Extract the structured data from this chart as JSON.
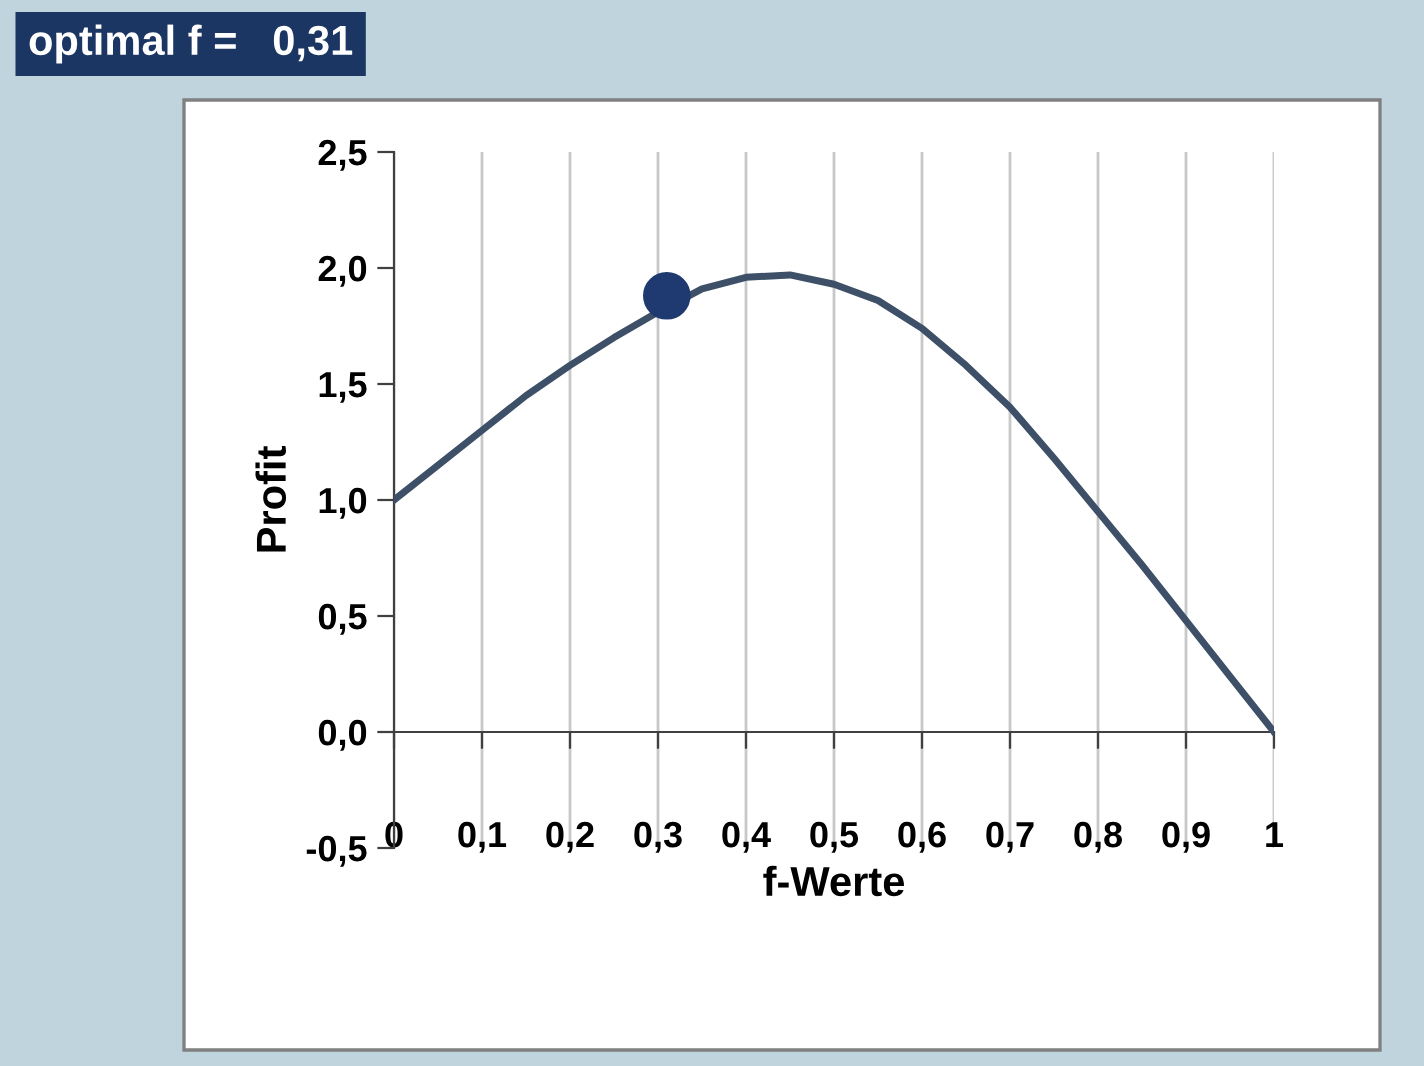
{
  "chart_data": {
    "type": "line",
    "title": "optimal f =   0,31",
    "xlabel": "f-Werte",
    "ylabel": "Profit",
    "series": [
      {
        "color": "#3d5068",
        "marker": "none",
        "x": [
          0,
          0.05,
          0.1,
          0.15,
          0.2,
          0.25,
          0.3,
          0.35,
          0.4,
          0.45,
          0.5,
          0.55,
          0.6,
          0.65,
          0.7,
          0.75,
          0.8,
          0.85,
          0.9,
          0.95,
          1.0
        ],
        "values": [
          1.0,
          1.15,
          1.3,
          1.45,
          1.58,
          1.7,
          1.81,
          1.91,
          1.96,
          1.97,
          1.93,
          1.86,
          1.74,
          1.58,
          1.4,
          1.18,
          0.95,
          0.72,
          0.48,
          0.24,
          0.0
        ]
      },
      {
        "type": "scatter",
        "color": "#1f3a70",
        "marker": "circle",
        "x": [
          0.31
        ],
        "values": [
          1.88
        ]
      }
    ],
    "xlim": [
      0,
      1
    ],
    "ylim": [
      -0.5,
      2.5
    ],
    "xticks": [
      0,
      {
        "value": 0.1,
        "label": "0,1"
      },
      {
        "value": 0.2,
        "label": "0,2"
      },
      {
        "value": 0.3,
        "label": "0,3"
      },
      {
        "value": 0.4,
        "label": "0,4"
      },
      {
        "value": 0.5,
        "label": "0,5"
      },
      {
        "value": 0.6,
        "label": "0,6"
      },
      {
        "value": 0.7,
        "label": "0,7"
      },
      {
        "value": 0.8,
        "label": "0,8"
      },
      {
        "value": 0.9,
        "label": "0,9"
      },
      1
    ],
    "yticks": [
      {
        "value": -0.5,
        "label": "-0,5"
      },
      {
        "value": 0,
        "label": "0,0"
      },
      {
        "value": 0.5,
        "label": "0,5"
      },
      {
        "value": 1.0,
        "label": "1,0"
      },
      {
        "value": 1.5,
        "label": "1,5"
      },
      {
        "value": 2.0,
        "label": "2,0"
      },
      {
        "value": 2.5,
        "label": "2,5"
      }
    ],
    "grid": "x",
    "legend": false
  }
}
